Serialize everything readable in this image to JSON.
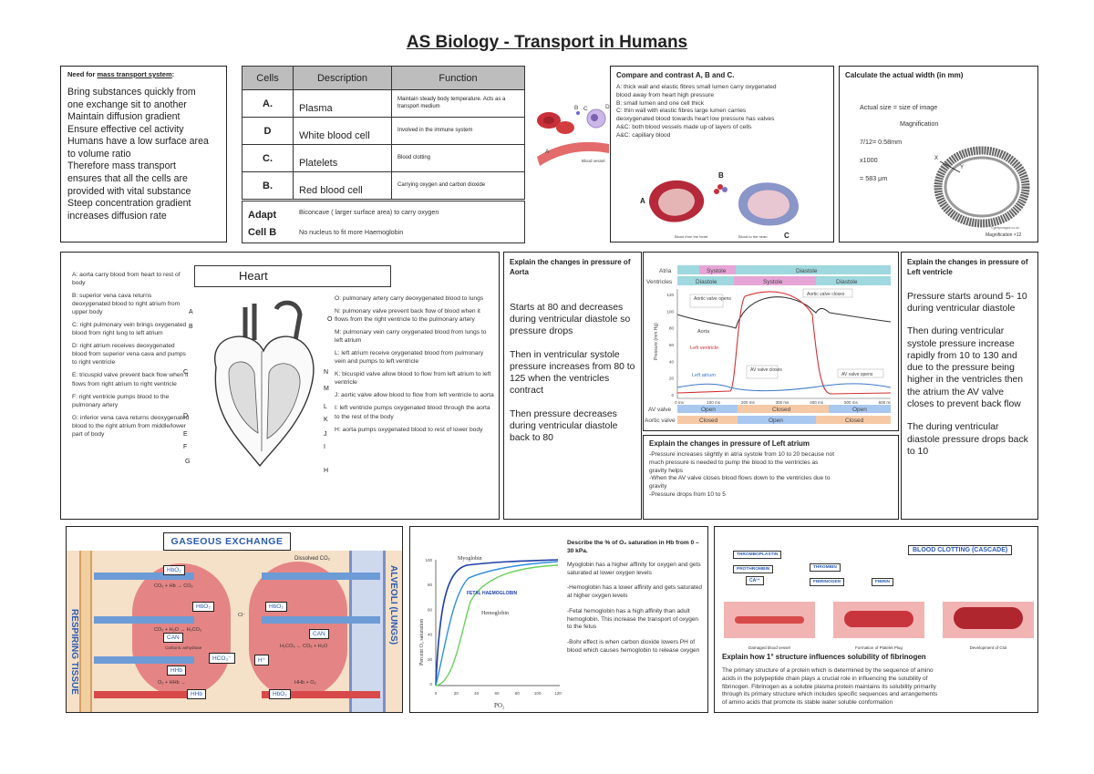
{
  "title": "AS Biology - Transport in Humans",
  "need": {
    "heading_prefix": "Need for ",
    "heading_link": "mass transport system",
    "heading_suffix": ":",
    "lines": [
      "Bring substances quickly from",
      "one exchange sit to another",
      "Maintain diffusion gradient",
      "Ensure effective cel activity",
      "Humans have a low surface area",
      "to volume ratio",
      "Therefore mass transport",
      "ensures that all the cells are",
      "provided with vital substance",
      "Steep concentration gradient",
      "increases diffusion rate"
    ]
  },
  "cells_table": {
    "headers": [
      "Cells",
      "Description",
      "Function"
    ],
    "rows": [
      {
        "cell": "A.",
        "description": "Plasma",
        "function": "Maintain steady body temperature. Acts as a transport medium"
      },
      {
        "cell": "D",
        "description": "White blood cell",
        "function": "Involved in the immune system"
      },
      {
        "cell": "C.",
        "description": "Platelets",
        "function": "Blood clotting"
      },
      {
        "cell": "B.",
        "description": "Red blood cell",
        "function": "Carrying oxygen and carbon dioxide"
      }
    ],
    "adapt_label_1": "Adapt",
    "adapt_label_2": "Cell B",
    "adapt_1": "Biconcave ( larger surface area) to carry oxygen",
    "adapt_2": "No nucleus to fit more Haemoglobin"
  },
  "blood_img": {
    "label_b": "B",
    "label_c": "C",
    "label_d": "D",
    "label_a": "A",
    "vessel": "Blood vessel"
  },
  "compare": {
    "heading": "Compare and contrast A, B and C.",
    "lines": [
      "A: thick wall and elastic fibres small lumen carry oxygenated",
      "blood away from heart high pressure",
      "B: small lumen and one cell thick",
      "C: thin wall with elastic fibres large lumen carries",
      "deoxygenated blood towards heart low pressure has valves",
      "A&C: both blood vessels made up of layers of cells",
      "A&C: capillary blood"
    ],
    "label_a": "A",
    "label_b": "B",
    "label_c": "C",
    "from_heart": "Blood from the heart",
    "to_heart": "Blood to the heart"
  },
  "width_calc": {
    "heading": "Calculate the actual width (in mm)",
    "lines": [
      "Actual size = size of image",
      "Magnification",
      "7/12= 0.58mm",
      "x1000",
      "= 583 μm"
    ],
    "x_label": "X",
    "y_label": "Y",
    "credit": "©gettyimages.co.uk",
    "mag": "Magnification ×12"
  },
  "heart": {
    "title": "Heart",
    "left_notes": [
      "A: aorta carry blood from heart to rest of body",
      "B: superior vena cava returns deoxygenated blood to right atrium from upper body",
      "C: right pulmonary vein brings oxygenated blood from right lung to left atrium",
      "D: right atrium receives deoxygenated blood from superior vena cava and pumps to right ventricle",
      "E: tricuspid valve prevent back flow when it flows from right atrium to right ventricle",
      "F: right ventricle pumps blood to the pulmonary artery",
      "G: inferior vena cava returns deoxygenated blood to the right atrium from middle/lower part of body"
    ],
    "right_notes": [
      "O: pulmonary artery carry deoxygenated blood to lungs",
      "N: pulmonary valve prevent back flow of blood when it flows from the right ventricle to the pulmonary artery",
      "M: pulmonary vein carry oxygenated blood from lungs to left atrium",
      "L: left atrium receive oxygenated blood from pulmonary vein and pumps to left ventricle",
      "K: bicuspid valve allow blood to flow from left atrium to left ventricle",
      "J: aortic valve allow blood to flow from left ventricle to aorta",
      "I: left ventricle pumps oxygenated blood through the aorta to the rest of the body",
      "H: aorta pumps oxygenated blood to rest of lower body"
    ],
    "labels_left": [
      "A",
      "B",
      "C",
      "D",
      "E",
      "F",
      "G"
    ],
    "labels_right": [
      "O",
      "N",
      "M",
      "L",
      "K",
      "J",
      "I",
      "H"
    ]
  },
  "aorta": {
    "heading": "Explain the changes in pressure of Aorta",
    "paras": [
      "Starts at 80 and decreases during ventricular diastole so pressure drops",
      "Then in ventricular systole pressure increases from 80 to 125 when the ventricles contract",
      "Then pressure decreases during ventricular diastole back to 80"
    ]
  },
  "cycle_graph": {
    "atria": "Atria",
    "ventricles": "Ventricles",
    "systole": "Systole",
    "diastole": "Diastole",
    "aortic_opens": "Aortic valve opens",
    "aortic_closes": "Aortic valve closes",
    "aorta": "Aorta",
    "left_ventricle": "Left ventricle",
    "left_atrium": "Left atrium",
    "av_closes": "AV valve closes",
    "av_opens": "AV valve opens",
    "ylabel": "Pressure (mm Hg)",
    "yticks": [
      "120",
      "100",
      "80",
      "60",
      "40",
      "20",
      "0"
    ],
    "xticks": [
      "0 ms",
      "100 ms",
      "200 ms",
      "300 ms",
      "400 ms",
      "500 ms",
      "600 ms"
    ],
    "av_row": "AV valve",
    "aortic_row": "Aortic valve",
    "open": "Open",
    "closed": "Closed"
  },
  "left_atrium": {
    "heading": "Explain the changes in pressure of Left atrium",
    "lines": [
      "-Pressure increases slightly in atria systole from 10 to 20 because not",
      "much pressure is needed to pump the blood to the ventricles as",
      "gravity helps",
      "-When the AV valve closes blood flows down to the ventricles due to",
      "gravity",
      "-Pressure drops from 10 to 5"
    ]
  },
  "left_ventricle": {
    "heading": "Explain the changes in pressure of Left ventricle",
    "paras": [
      "Pressure starts around 5- 10 during ventricular diastole",
      "Then during ventricular systole pressure increase rapidly from 10 to 130 and due to the pressure being higher in the ventricles then the atrium the AV valve closes to prevent back flow",
      "The during ventricular diastole pressure drops back to 10"
    ]
  },
  "gas": {
    "title": "GASEOUS EXCHANGE",
    "left_side": "RESPIRING TISSUE",
    "right_side": "ALVEOLI (LUNGS)",
    "dissolved_co2": "Dissolved CO₂",
    "hbo2": "HbO₂",
    "hhb": "HHb",
    "can": "CAN",
    "hco3": "HCO₃⁻",
    "h": "H⁺",
    "co2_hb": "CO₂ + Hb → CO₂",
    "co2_h2o": "CO₂ + H₂O → H₂CO₃",
    "h2co3": "H₂CO₃ ← CO₂ + H₂O",
    "o2_hhb": "O₂ + HHb →",
    "hb_o2": "HHb + O₂",
    "cl": "Cl⁻",
    "carbonic": "Carbonic anhydrase"
  },
  "dissociation": {
    "heading": "Describe the % of O₂ saturation in Hb from 0 – 30 kPa.",
    "paras": [
      "Myoglobin has a higher affinity for oxygen and gets saturated at lower oxygen levels",
      "-Hemoglobin has a lower affinity and gets saturated at higher oxygen levels",
      "-Fetal hemoglobin has a high affinity than adult hemoglobin. This increase the transport of oxygen to the fetus",
      "-Bohr effect is when carbon dioxide lowers PH of blood which causes hemoglobin to release oxygen"
    ],
    "myoglobin": "Myoglobin",
    "hemoglobin": "Hemoglobin",
    "fetal": "FETAL HAEMOGLOBIN",
    "ylabel": "Percent O₂ saturation",
    "xlabel": "PO₂",
    "yticks": [
      "100",
      "80",
      "60",
      "40",
      "20",
      "0"
    ],
    "xticks": [
      "0",
      "20",
      "40",
      "60",
      "80",
      "100",
      "120"
    ]
  },
  "clotting": {
    "title": "BLOOD CLOTTING (CASCADE)",
    "flow": [
      "THROMBOPLASTIN",
      "PROTHROMBIN",
      "THROMBIN",
      "FIBRINOGEN",
      "FIBRIN"
    ],
    "ca": "CA²⁺",
    "stages": [
      "Damaged blood vessel",
      "Formation of Platelet Plug",
      "Development of Clot"
    ],
    "heading": "Explain how 1° structure influences solubility of fibrinogen",
    "lines": [
      "The primary structure of a protein which is determined by the sequence of amino",
      "acids in the polypeptide chain plays a crucial role in influencing the solubility of",
      "fibrinogen. Fibrinogen as a soluble plasma protein maintains its solubility primarily",
      "through its primary structure which includes specific sequences and arrangements",
      "of amino acids that promote its stable water soluble conformation"
    ]
  },
  "colors": {
    "red": "#d23c3c",
    "blue": "#3d7ac9",
    "pink": "#e8a0c8",
    "orange": "#f6c9a6",
    "teal": "#7fcfd3"
  }
}
